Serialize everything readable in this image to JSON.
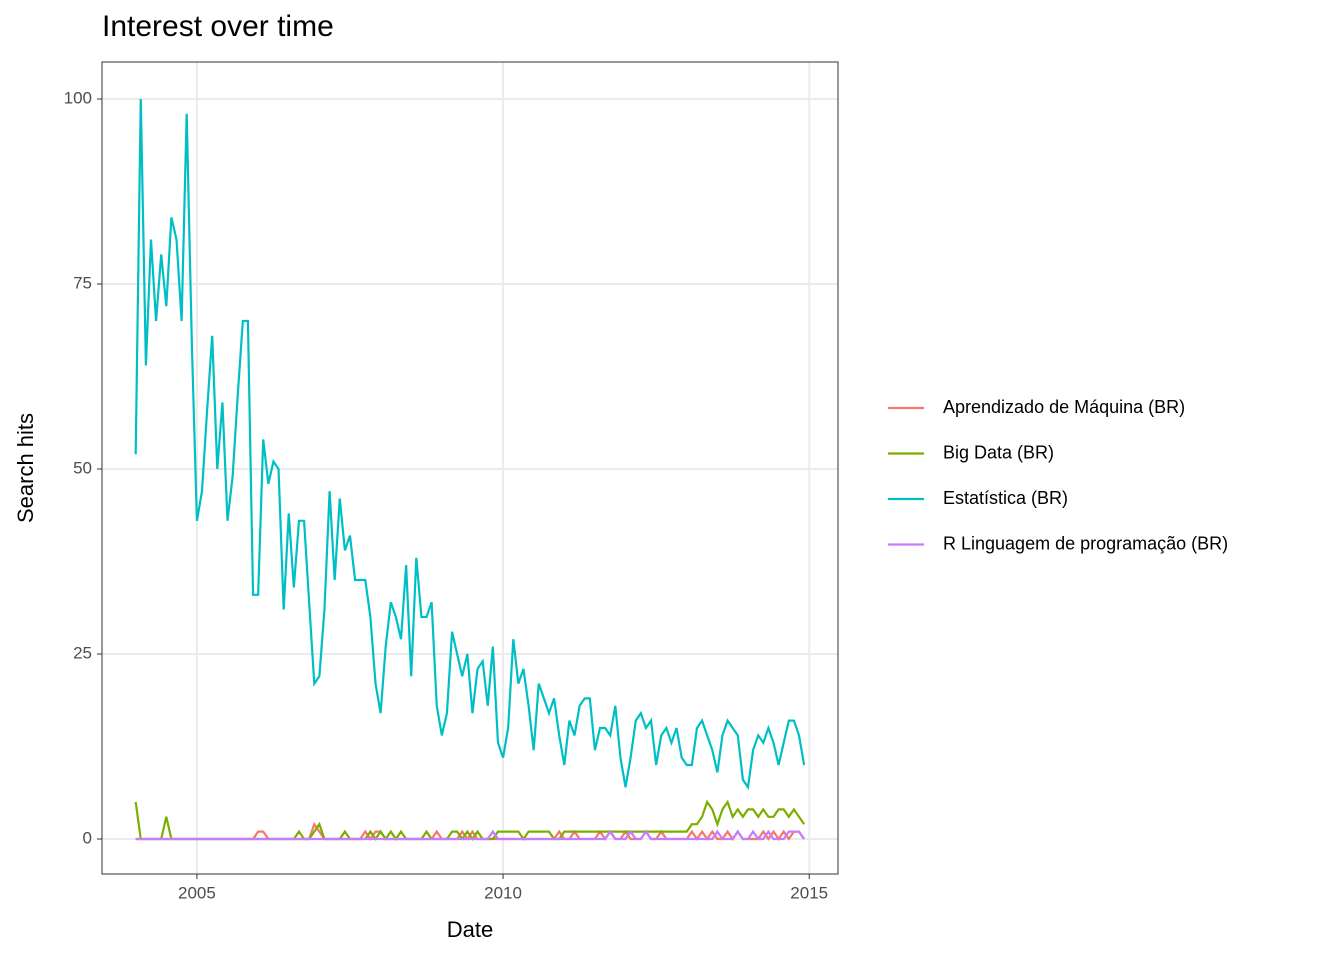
{
  "chart_data": {
    "type": "line",
    "title": "Interest over time",
    "x_label": "Date",
    "y_label": "Search hits",
    "x": [
      2004,
      2004.083,
      2004.167,
      2004.25,
      2004.333,
      2004.417,
      2004.5,
      2004.583,
      2004.667,
      2004.75,
      2004.833,
      2004.917,
      2005,
      2005.083,
      2005.167,
      2005.25,
      2005.333,
      2005.417,
      2005.5,
      2005.583,
      2005.667,
      2005.75,
      2005.833,
      2005.917,
      2006,
      2006.083,
      2006.167,
      2006.25,
      2006.333,
      2006.417,
      2006.5,
      2006.583,
      2006.667,
      2006.75,
      2006.833,
      2006.917,
      2007,
      2007.083,
      2007.167,
      2007.25,
      2007.333,
      2007.417,
      2007.5,
      2007.583,
      2007.667,
      2007.75,
      2007.833,
      2007.917,
      2008,
      2008.083,
      2008.167,
      2008.25,
      2008.333,
      2008.417,
      2008.5,
      2008.583,
      2008.667,
      2008.75,
      2008.833,
      2008.917,
      2009,
      2009.083,
      2009.167,
      2009.25,
      2009.333,
      2009.417,
      2009.5,
      2009.583,
      2009.667,
      2009.75,
      2009.833,
      2009.917,
      2010,
      2010.083,
      2010.167,
      2010.25,
      2010.333,
      2010.417,
      2010.5,
      2010.583,
      2010.667,
      2010.75,
      2010.833,
      2010.917,
      2011,
      2011.083,
      2011.167,
      2011.25,
      2011.333,
      2011.417,
      2011.5,
      2011.583,
      2011.667,
      2011.75,
      2011.833,
      2011.917,
      2012,
      2012.083,
      2012.167,
      2012.25,
      2012.333,
      2012.417,
      2012.5,
      2012.583,
      2012.667,
      2012.75,
      2012.833,
      2012.917,
      2013,
      2013.083,
      2013.167,
      2013.25,
      2013.333,
      2013.417,
      2013.5,
      2013.583,
      2013.667,
      2013.75,
      2013.833,
      2013.917,
      2014,
      2014.083,
      2014.167,
      2014.25,
      2014.333,
      2014.417,
      2014.5,
      2014.583,
      2014.667,
      2014.75,
      2014.833,
      2014.917
    ],
    "series": [
      {
        "name": "Aprendizado de Máquina (BR)",
        "color": "#F8766D",
        "values": [
          0,
          0,
          0,
          0,
          0,
          0,
          0,
          0,
          0,
          0,
          0,
          0,
          0,
          0,
          0,
          0,
          0,
          0,
          0,
          0,
          0,
          0,
          0,
          0,
          1,
          1,
          0,
          0,
          0,
          0,
          0,
          0,
          0,
          0,
          0,
          2,
          1,
          0,
          0,
          0,
          0,
          0,
          0,
          0,
          0,
          1,
          0,
          1,
          1,
          0,
          0,
          0,
          0,
          0,
          0,
          0,
          0,
          0,
          0,
          1,
          0,
          0,
          0,
          0,
          1,
          0,
          1,
          0,
          0,
          0,
          0,
          0,
          0,
          0,
          0,
          0,
          0,
          0,
          0,
          0,
          0,
          0,
          0,
          1,
          0,
          0,
          1,
          0,
          0,
          0,
          0,
          1,
          0,
          1,
          0,
          0,
          1,
          0,
          0,
          0,
          1,
          0,
          0,
          1,
          0,
          0,
          0,
          0,
          0,
          1,
          0,
          1,
          0,
          1,
          0,
          0,
          1,
          0,
          1,
          0,
          0,
          0,
          0,
          1,
          0,
          1,
          0,
          1,
          0,
          1,
          1,
          0
        ]
      },
      {
        "name": "Big Data (BR)",
        "color": "#7CAE00",
        "values": [
          5,
          0,
          0,
          0,
          0,
          0,
          3,
          0,
          0,
          0,
          0,
          0,
          0,
          0,
          0,
          0,
          0,
          0,
          0,
          0,
          0,
          0,
          0,
          0,
          0,
          0,
          0,
          0,
          0,
          0,
          0,
          0,
          1,
          0,
          0,
          1,
          2,
          0,
          0,
          0,
          0,
          1,
          0,
          0,
          0,
          0,
          1,
          0,
          1,
          0,
          1,
          0,
          1,
          0,
          0,
          0,
          0,
          1,
          0,
          0,
          0,
          0,
          1,
          1,
          0,
          1,
          0,
          1,
          0,
          0,
          0,
          1,
          1,
          1,
          1,
          1,
          0,
          1,
          1,
          1,
          1,
          1,
          0,
          0,
          1,
          1,
          1,
          1,
          1,
          1,
          1,
          1,
          1,
          1,
          1,
          1,
          1,
          1,
          1,
          1,
          1,
          1,
          1,
          1,
          1,
          1,
          1,
          1,
          1,
          2,
          2,
          3,
          5,
          4,
          2,
          4,
          5,
          3,
          4,
          3,
          4,
          4,
          3,
          4,
          3,
          3,
          4,
          4,
          3,
          4,
          3,
          2
        ]
      },
      {
        "name": "Estatística (BR)",
        "color": "#00BFC4",
        "values": [
          52,
          100,
          64,
          81,
          70,
          79,
          72,
          84,
          81,
          70,
          98,
          67,
          43,
          47,
          58,
          68,
          50,
          59,
          43,
          49,
          60,
          70,
          70,
          33,
          33,
          54,
          48,
          51,
          50,
          31,
          44,
          34,
          43,
          43,
          32,
          21,
          22,
          31,
          47,
          35,
          46,
          39,
          41,
          35,
          35,
          35,
          30,
          21,
          17,
          26,
          32,
          30,
          27,
          37,
          22,
          38,
          30,
          30,
          32,
          18,
          14,
          17,
          28,
          25,
          22,
          25,
          17,
          23,
          24,
          18,
          26,
          13,
          11,
          15,
          27,
          21,
          23,
          18,
          12,
          21,
          19,
          17,
          19,
          14,
          10,
          16,
          14,
          18,
          19,
          19,
          12,
          15,
          15,
          14,
          18,
          11,
          7,
          11,
          16,
          17,
          15,
          16,
          10,
          14,
          15,
          13,
          15,
          11,
          10,
          10,
          15,
          16,
          14,
          12,
          9,
          14,
          16,
          15,
          14,
          8,
          7,
          12,
          14,
          13,
          15,
          13,
          10,
          13,
          16,
          16,
          14,
          10
        ]
      },
      {
        "name": "R Linguagem de programação (BR)",
        "color": "#C77CFF",
        "values": [
          0,
          0,
          0,
          0,
          0,
          0,
          0,
          0,
          0,
          0,
          0,
          0,
          0,
          0,
          0,
          0,
          0,
          0,
          0,
          0,
          0,
          0,
          0,
          0,
          0,
          0,
          0,
          0,
          0,
          0,
          0,
          0,
          0,
          0,
          0,
          0,
          0,
          0,
          0,
          0,
          0,
          0,
          0,
          0,
          0,
          0,
          0,
          0,
          0,
          0,
          0,
          0,
          0,
          0,
          0,
          0,
          0,
          0,
          0,
          0,
          0,
          0,
          0,
          0,
          0,
          0,
          0,
          0,
          0,
          0,
          1,
          0,
          0,
          0,
          0,
          0,
          0,
          0,
          0,
          0,
          0,
          0,
          0,
          0,
          0,
          0,
          0,
          0,
          0,
          0,
          0,
          0,
          0,
          1,
          0,
          0,
          0,
          1,
          0,
          0,
          1,
          0,
          0,
          0,
          0,
          0,
          0,
          0,
          0,
          0,
          0,
          0,
          0,
          0,
          1,
          0,
          0,
          0,
          1,
          0,
          0,
          1,
          0,
          0,
          1,
          0,
          0,
          0,
          1,
          1,
          1,
          0
        ]
      }
    ],
    "xlim": [
      2003.45,
      2015.47
    ],
    "ylim": [
      -4.73,
      105
    ],
    "xticks": [
      2005,
      2010,
      2015
    ],
    "yticks": [
      0,
      25,
      50,
      75,
      100
    ],
    "grid": true,
    "legend": "right"
  }
}
